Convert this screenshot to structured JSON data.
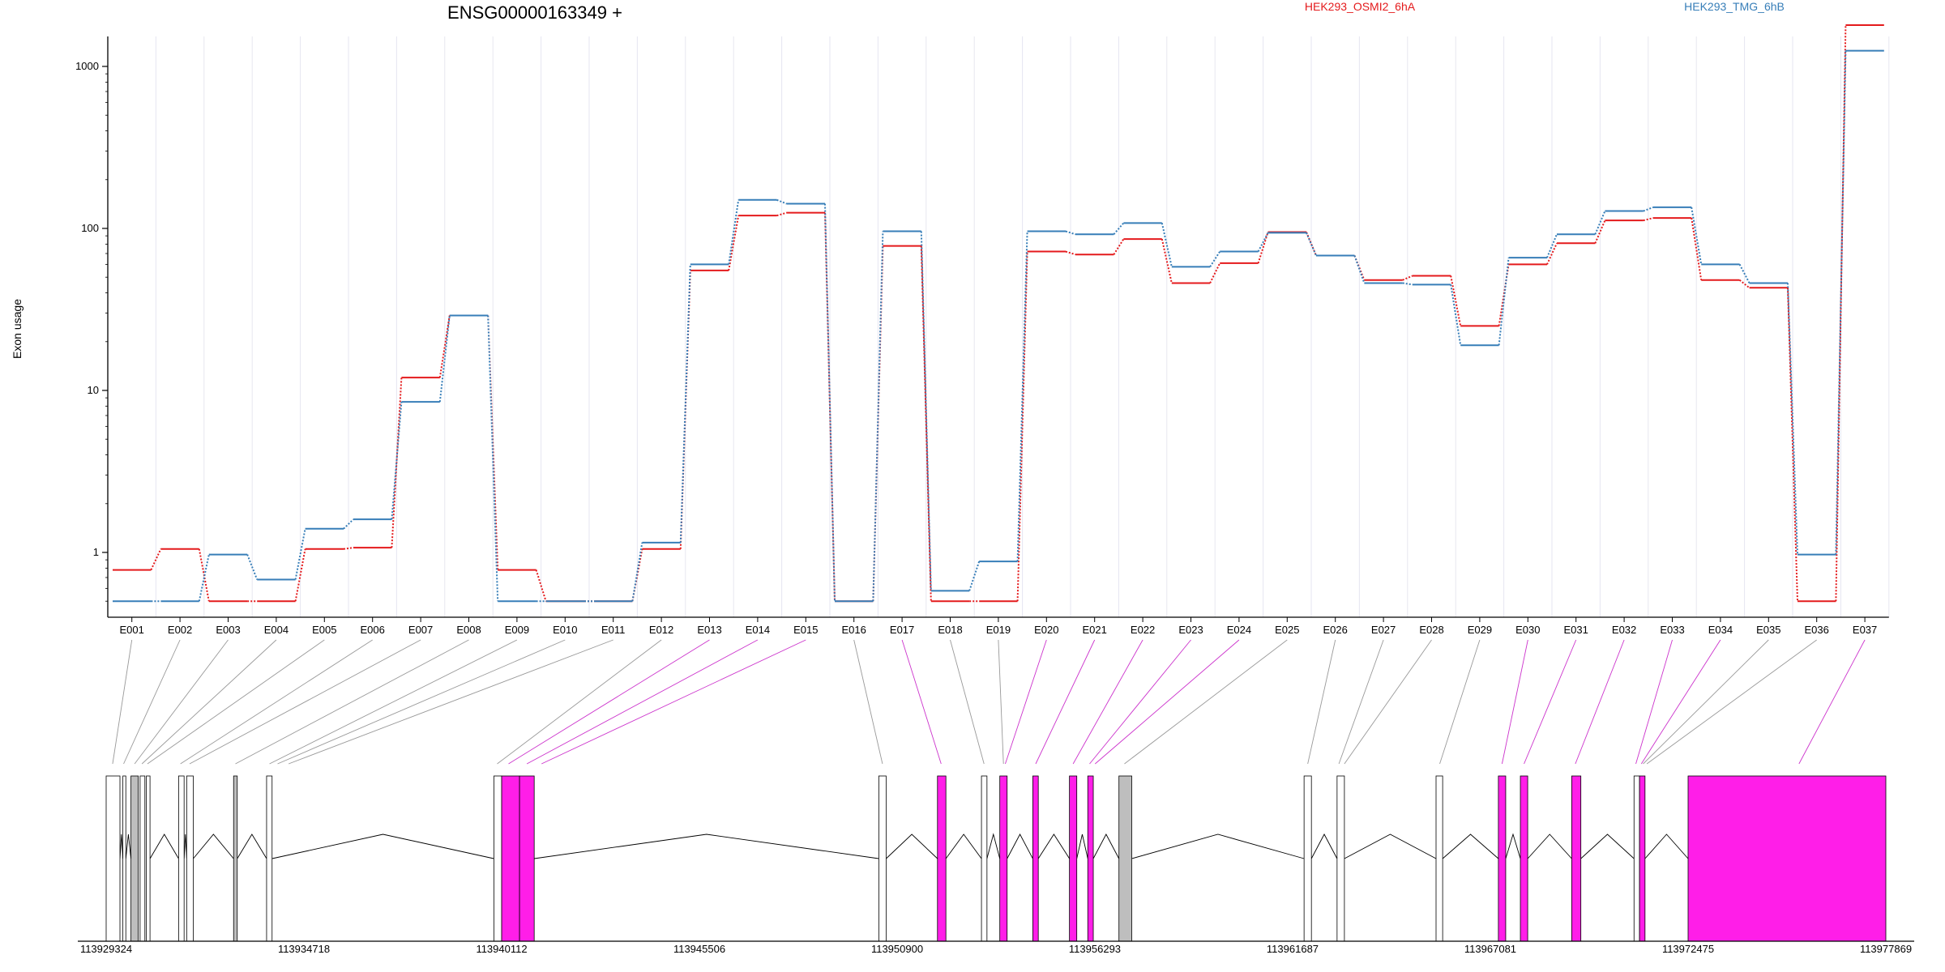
{
  "chart_data": {
    "type": "line",
    "title": "ENSG00000163349 +",
    "ylabel": "Exon usage",
    "xlabel": "",
    "yscale": "log",
    "yticks": [
      1,
      10,
      100,
      1000
    ],
    "ytick_labels": [
      "1",
      "10",
      "100",
      "1000"
    ],
    "ylim": [
      0.5,
      2600
    ],
    "categories": [
      "E001",
      "E002",
      "E003",
      "E004",
      "E005",
      "E006",
      "E007",
      "E008",
      "E009",
      "E010",
      "E011",
      "E012",
      "E013",
      "E014",
      "E015",
      "E016",
      "E017",
      "E018",
      "E019",
      "E020",
      "E021",
      "E022",
      "E023",
      "E024",
      "E025",
      "E026",
      "E027",
      "E028",
      "E029",
      "E030",
      "E031",
      "E032",
      "E033",
      "E034",
      "E035",
      "E036",
      "E037"
    ],
    "series": [
      {
        "name": "HEK293_OSMI2_6hA",
        "color": "#e41a1c",
        "values": [
          0.78,
          1.05,
          0.5,
          0.5,
          1.05,
          1.07,
          12.0,
          29.0,
          0.78,
          0.5,
          0.5,
          1.05,
          55,
          120,
          125,
          0.5,
          78,
          0.5,
          0.5,
          72,
          69,
          86,
          46,
          61,
          95,
          68,
          48,
          51,
          25,
          60,
          81,
          112,
          116,
          48,
          43,
          0.5,
          1800
        ]
      },
      {
        "name": "HEK293_TMG_6hB",
        "color": "#377eb8",
        "values": [
          0.5,
          0.5,
          0.97,
          0.68,
          1.4,
          1.6,
          8.5,
          29.0,
          0.5,
          0.5,
          0.5,
          1.15,
          60,
          150,
          142,
          0.5,
          96,
          0.58,
          0.88,
          96,
          92,
          108,
          58,
          72,
          94,
          68,
          46,
          45,
          19,
          66,
          92,
          128,
          135,
          60,
          46,
          0.97,
          1250
        ]
      }
    ],
    "grid": true,
    "legend_placement": "top"
  },
  "gene_model": {
    "coord_min": 113929324,
    "coord_max": 113977869,
    "coord_ticks": [
      113929324,
      113934718,
      113940112,
      113945506,
      113950900,
      113956293,
      113961687,
      113967081,
      113972475,
      113977869
    ],
    "coord_tick_labels": [
      "113929324",
      "113934718",
      "113940112",
      "113945506",
      "113950900",
      "113956293",
      "113961687",
      "113967081",
      "113972475",
      "113977869"
    ],
    "exon_fill_colors": {
      "nonsignificant": "#ffffff",
      "significant": "#ff1ee8",
      "overlap": "#bebebe"
    }
  }
}
